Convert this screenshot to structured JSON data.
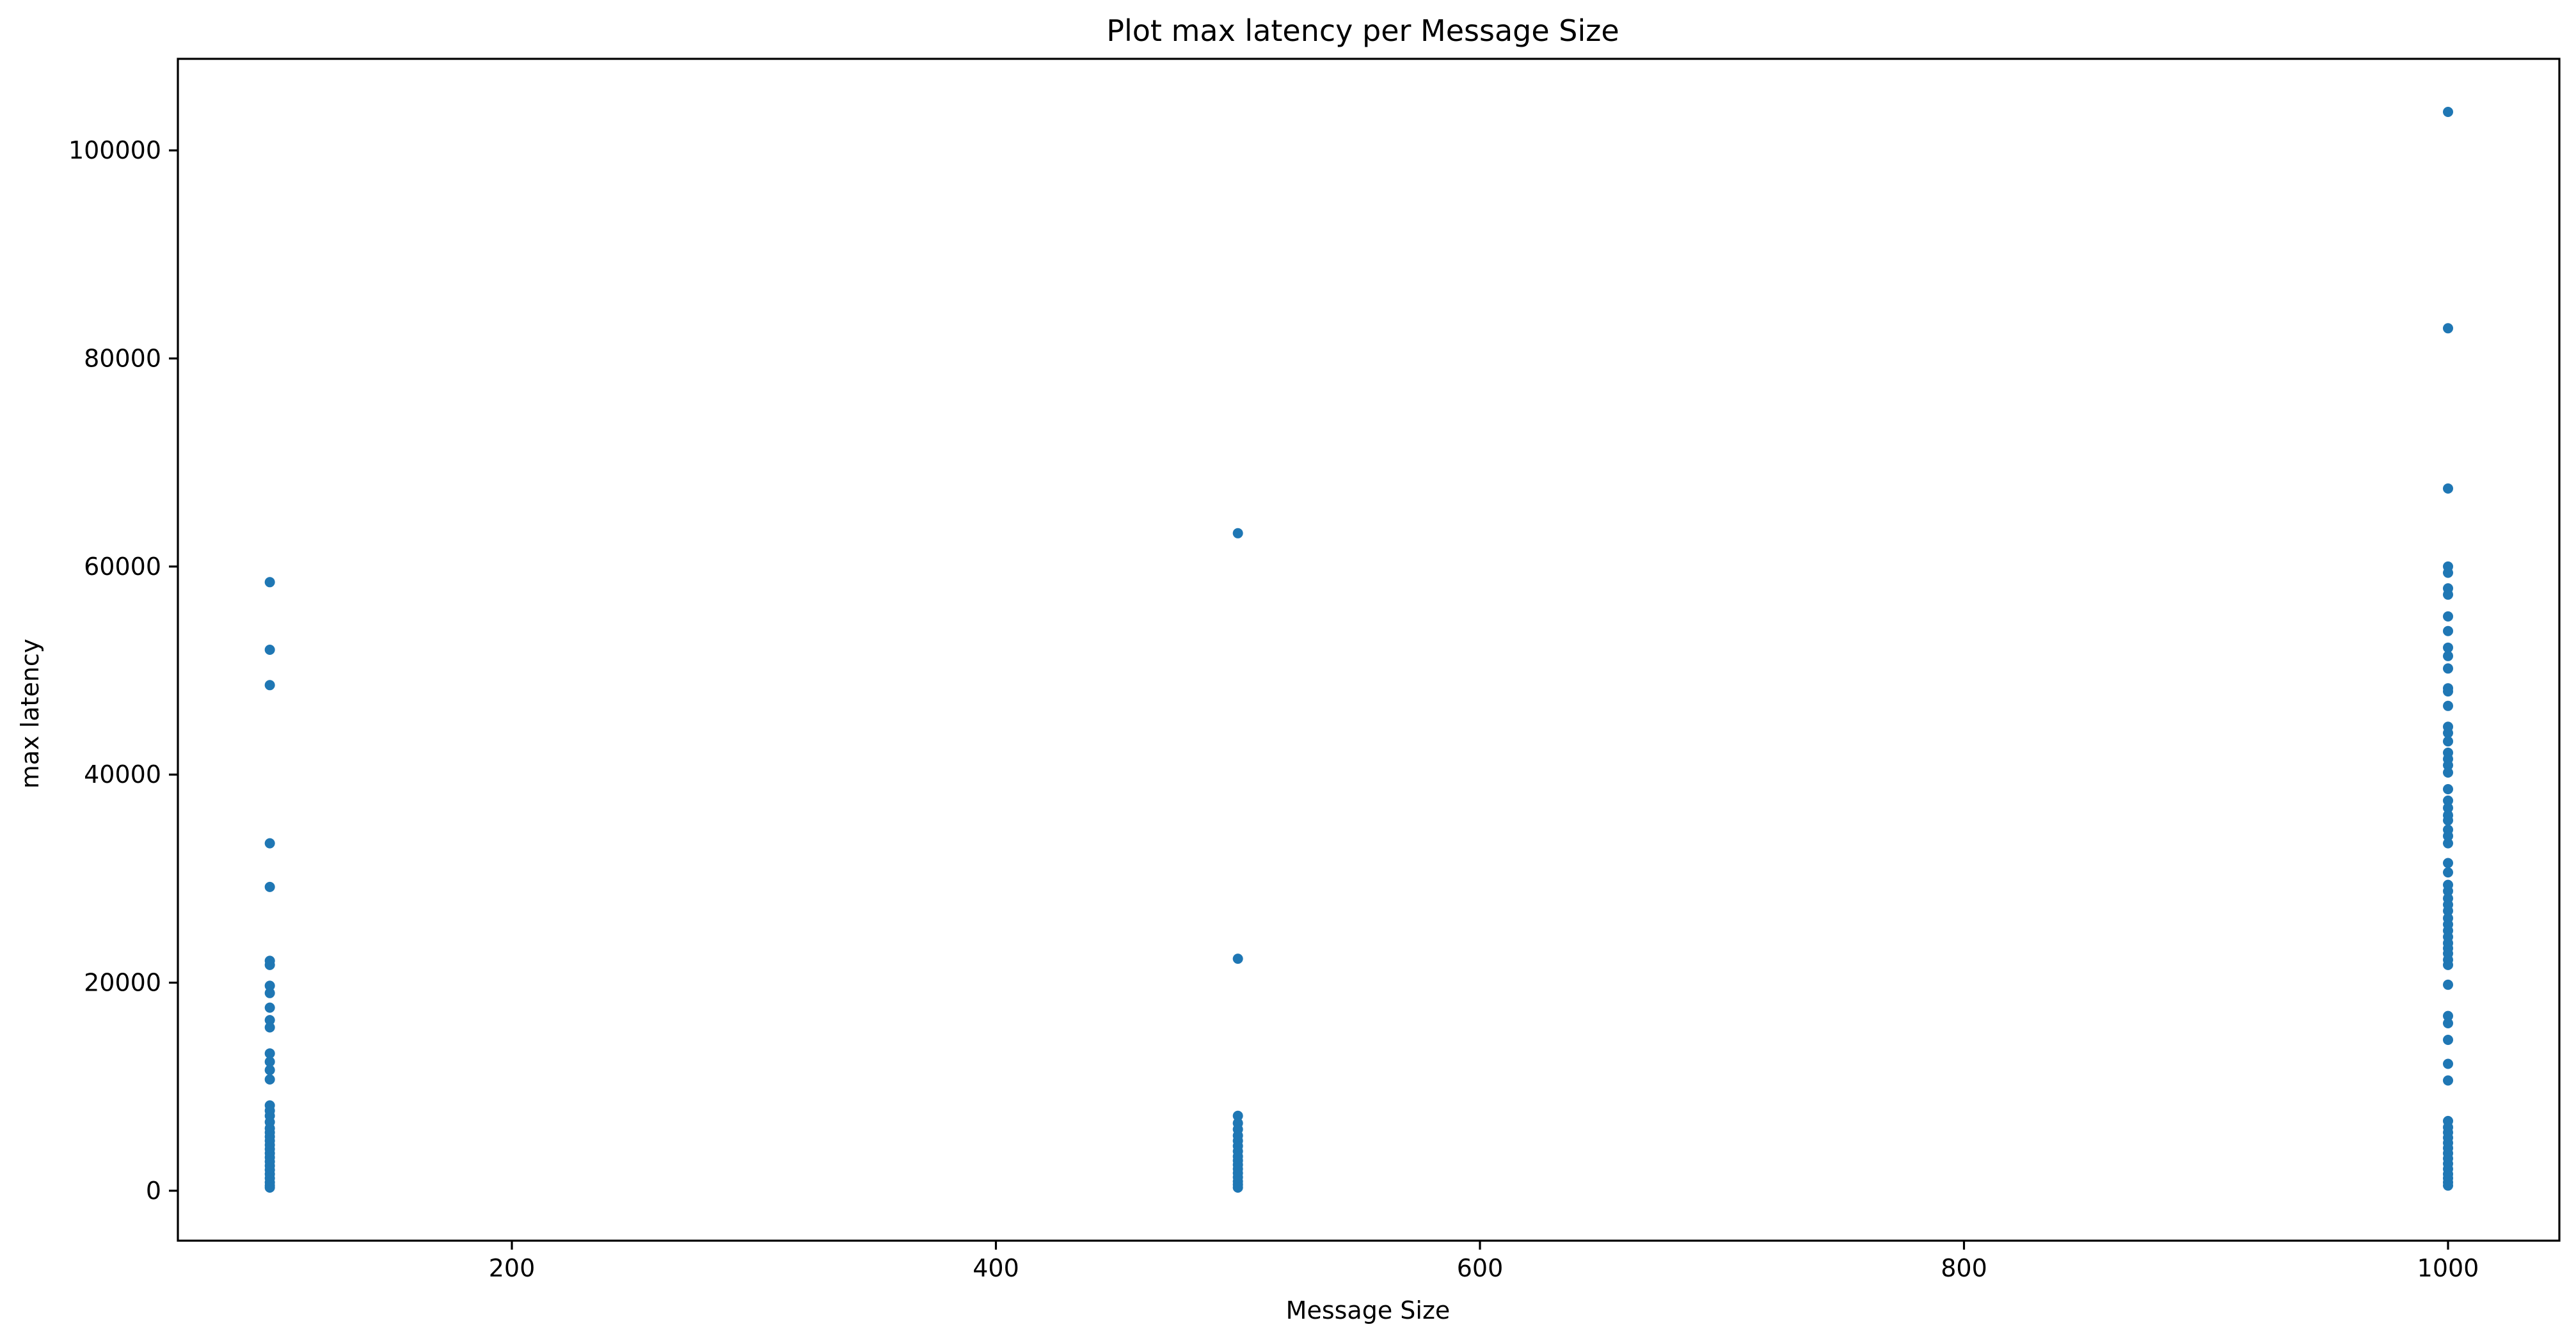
{
  "chart_data": {
    "type": "scatter",
    "title": "Plot max latency per Message Size",
    "xlabel": "Message Size",
    "ylabel": "max latency",
    "xlim": [
      62,
      1046
    ],
    "ylim": [
      -4800,
      108800
    ],
    "xticks": [
      200,
      400,
      600,
      800,
      1000
    ],
    "yticks": [
      0,
      20000,
      40000,
      60000,
      80000,
      100000
    ],
    "grid": false,
    "color": "#1f77b4",
    "series": [
      {
        "name": "max latency",
        "points": [
          {
            "x": 100,
            "y": 58500
          },
          {
            "x": 100,
            "y": 52000
          },
          {
            "x": 100,
            "y": 48600
          },
          {
            "x": 100,
            "y": 33400
          },
          {
            "x": 100,
            "y": 29200
          },
          {
            "x": 100,
            "y": 22100
          },
          {
            "x": 100,
            "y": 21700
          },
          {
            "x": 100,
            "y": 19700
          },
          {
            "x": 100,
            "y": 19000
          },
          {
            "x": 100,
            "y": 17600
          },
          {
            "x": 100,
            "y": 16400
          },
          {
            "x": 100,
            "y": 15700
          },
          {
            "x": 100,
            "y": 13200
          },
          {
            "x": 100,
            "y": 12400
          },
          {
            "x": 100,
            "y": 11600
          },
          {
            "x": 100,
            "y": 10700
          },
          {
            "x": 100,
            "y": 8200
          },
          {
            "x": 100,
            "y": 7700
          },
          {
            "x": 100,
            "y": 7200
          },
          {
            "x": 100,
            "y": 6600
          },
          {
            "x": 100,
            "y": 6000
          },
          {
            "x": 100,
            "y": 5600
          },
          {
            "x": 100,
            "y": 5200
          },
          {
            "x": 100,
            "y": 4800
          },
          {
            "x": 100,
            "y": 4400
          },
          {
            "x": 100,
            "y": 4000
          },
          {
            "x": 100,
            "y": 3600
          },
          {
            "x": 100,
            "y": 3200
          },
          {
            "x": 100,
            "y": 2800
          },
          {
            "x": 100,
            "y": 2400
          },
          {
            "x": 100,
            "y": 2000
          },
          {
            "x": 100,
            "y": 1600
          },
          {
            "x": 100,
            "y": 1200
          },
          {
            "x": 100,
            "y": 800
          },
          {
            "x": 100,
            "y": 500
          },
          {
            "x": 100,
            "y": 300
          },
          {
            "x": 500,
            "y": 63200
          },
          {
            "x": 500,
            "y": 22300
          },
          {
            "x": 500,
            "y": 7200
          },
          {
            "x": 500,
            "y": 6500
          },
          {
            "x": 500,
            "y": 5900
          },
          {
            "x": 500,
            "y": 5300
          },
          {
            "x": 500,
            "y": 4800
          },
          {
            "x": 500,
            "y": 4300
          },
          {
            "x": 500,
            "y": 3800
          },
          {
            "x": 500,
            "y": 3300
          },
          {
            "x": 500,
            "y": 2900
          },
          {
            "x": 500,
            "y": 2500
          },
          {
            "x": 500,
            "y": 2100
          },
          {
            "x": 500,
            "y": 1700
          },
          {
            "x": 500,
            "y": 1300
          },
          {
            "x": 500,
            "y": 900
          },
          {
            "x": 500,
            "y": 600
          },
          {
            "x": 500,
            "y": 300
          },
          {
            "x": 1000,
            "y": 103700
          },
          {
            "x": 1000,
            "y": 82900
          },
          {
            "x": 1000,
            "y": 67500
          },
          {
            "x": 1000,
            "y": 60000
          },
          {
            "x": 1000,
            "y": 59400
          },
          {
            "x": 1000,
            "y": 57900
          },
          {
            "x": 1000,
            "y": 57300
          },
          {
            "x": 1000,
            "y": 55200
          },
          {
            "x": 1000,
            "y": 53800
          },
          {
            "x": 1000,
            "y": 52200
          },
          {
            "x": 1000,
            "y": 51400
          },
          {
            "x": 1000,
            "y": 50200
          },
          {
            "x": 1000,
            "y": 48300
          },
          {
            "x": 1000,
            "y": 48000
          },
          {
            "x": 1000,
            "y": 46600
          },
          {
            "x": 1000,
            "y": 44600
          },
          {
            "x": 1000,
            "y": 44000
          },
          {
            "x": 1000,
            "y": 43200
          },
          {
            "x": 1000,
            "y": 42100
          },
          {
            "x": 1000,
            "y": 41500
          },
          {
            "x": 1000,
            "y": 40900
          },
          {
            "x": 1000,
            "y": 40200
          },
          {
            "x": 1000,
            "y": 38600
          },
          {
            "x": 1000,
            "y": 37500
          },
          {
            "x": 1000,
            "y": 36800
          },
          {
            "x": 1000,
            "y": 36100
          },
          {
            "x": 1000,
            "y": 35600
          },
          {
            "x": 1000,
            "y": 34700
          },
          {
            "x": 1000,
            "y": 34100
          },
          {
            "x": 1000,
            "y": 33400
          },
          {
            "x": 1000,
            "y": 31500
          },
          {
            "x": 1000,
            "y": 30600
          },
          {
            "x": 1000,
            "y": 29400
          },
          {
            "x": 1000,
            "y": 28800
          },
          {
            "x": 1000,
            "y": 28100
          },
          {
            "x": 1000,
            "y": 27500
          },
          {
            "x": 1000,
            "y": 26900
          },
          {
            "x": 1000,
            "y": 26200
          },
          {
            "x": 1000,
            "y": 25600
          },
          {
            "x": 1000,
            "y": 25000
          },
          {
            "x": 1000,
            "y": 24400
          },
          {
            "x": 1000,
            "y": 23800
          },
          {
            "x": 1000,
            "y": 23300
          },
          {
            "x": 1000,
            "y": 22800
          },
          {
            "x": 1000,
            "y": 22200
          },
          {
            "x": 1000,
            "y": 21700
          },
          {
            "x": 1000,
            "y": 19800
          },
          {
            "x": 1000,
            "y": 16800
          },
          {
            "x": 1000,
            "y": 16100
          },
          {
            "x": 1000,
            "y": 14500
          },
          {
            "x": 1000,
            "y": 12200
          },
          {
            "x": 1000,
            "y": 10600
          },
          {
            "x": 1000,
            "y": 6700
          },
          {
            "x": 1000,
            "y": 6100
          },
          {
            "x": 1000,
            "y": 5600
          },
          {
            "x": 1000,
            "y": 5100
          },
          {
            "x": 1000,
            "y": 4600
          },
          {
            "x": 1000,
            "y": 4100
          },
          {
            "x": 1000,
            "y": 3600
          },
          {
            "x": 1000,
            "y": 3100
          },
          {
            "x": 1000,
            "y": 2600
          },
          {
            "x": 1000,
            "y": 2100
          },
          {
            "x": 1000,
            "y": 1600
          },
          {
            "x": 1000,
            "y": 1200
          },
          {
            "x": 1000,
            "y": 800
          },
          {
            "x": 1000,
            "y": 500
          }
        ]
      }
    ]
  }
}
